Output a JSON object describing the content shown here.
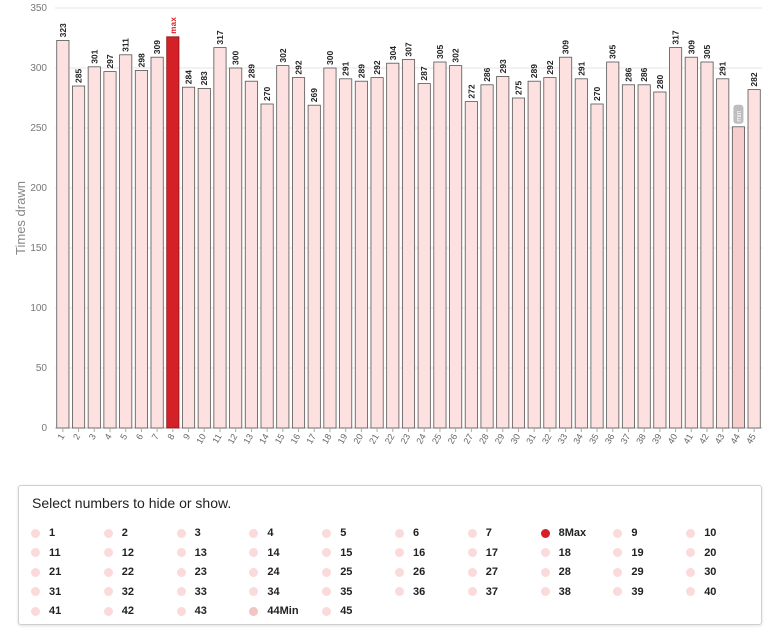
{
  "chart_data": {
    "type": "bar",
    "title": "",
    "xlabel": "",
    "ylabel": "Times drawn",
    "ylim": [
      0,
      350
    ],
    "yticks": [
      0,
      50,
      100,
      150,
      200,
      250,
      300,
      350
    ],
    "grid": true,
    "categories": [
      "1",
      "2",
      "3",
      "4",
      "5",
      "6",
      "7",
      "8",
      "9",
      "10",
      "11",
      "12",
      "13",
      "14",
      "15",
      "16",
      "17",
      "18",
      "19",
      "20",
      "21",
      "22",
      "23",
      "24",
      "25",
      "26",
      "27",
      "28",
      "29",
      "30",
      "31",
      "32",
      "33",
      "34",
      "35",
      "36",
      "37",
      "38",
      "39",
      "40",
      "41",
      "42",
      "43",
      "44",
      "45"
    ],
    "values": [
      323,
      285,
      301,
      297,
      311,
      298,
      309,
      326,
      284,
      283,
      317,
      300,
      289,
      270,
      302,
      292,
      269,
      300,
      291,
      289,
      292,
      304,
      307,
      287,
      305,
      302,
      272,
      286,
      293,
      275,
      289,
      292,
      309,
      291,
      270,
      305,
      286,
      286,
      280,
      317,
      309,
      305,
      291,
      251,
      282
    ],
    "labels": [
      "323",
      "285",
      "301",
      "297",
      "311",
      "298",
      "309",
      "",
      "284",
      "283",
      "317",
      "300",
      "289",
      "270",
      "302",
      "292",
      "269",
      "300",
      "291",
      "289",
      "292",
      "304",
      "307",
      "287",
      "305",
      "302",
      "272",
      "286",
      "293",
      "275",
      "289",
      "292",
      "309",
      "291",
      "270",
      "305",
      "286",
      "286",
      "280",
      "317",
      "309",
      "305",
      "291",
      "",
      "282"
    ],
    "max_index": 7,
    "min_index": 43,
    "max_tag": "max",
    "min_tag": "min",
    "colors": {
      "bar": "#fde1e1",
      "bar_edge": "#555555",
      "max": "#d42128",
      "min": "#f6cece"
    }
  },
  "legend": {
    "title": "Select numbers to hide or show.",
    "items": [
      "1",
      "2",
      "3",
      "4",
      "5",
      "6",
      "7",
      "8Max",
      "9",
      "10",
      "11",
      "12",
      "13",
      "14",
      "15",
      "16",
      "17",
      "18",
      "19",
      "20",
      "21",
      "22",
      "23",
      "24",
      "25",
      "26",
      "27",
      "28",
      "29",
      "30",
      "31",
      "32",
      "33",
      "34",
      "35",
      "36",
      "37",
      "38",
      "39",
      "40",
      "41",
      "42",
      "43",
      "44Min",
      "45"
    ]
  }
}
